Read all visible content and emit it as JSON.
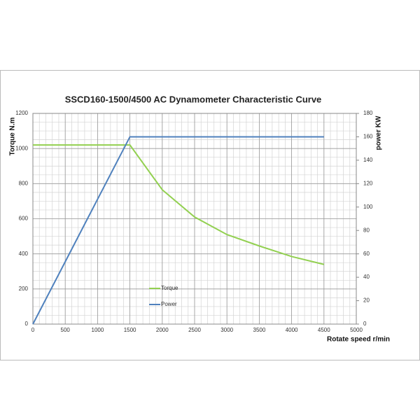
{
  "chart_data": {
    "type": "line",
    "title": "SSCD160-1500/4500  AC Dynamometer Characteristic Curve",
    "x_label": "Rotate speed r/min",
    "y_label": "Torque N.m",
    "y2_label": "power KW",
    "x": [
      0,
      500,
      1000,
      1500,
      2000,
      2500,
      3000,
      3500,
      4000,
      4500
    ],
    "series": [
      {
        "name": "Torque",
        "color": "#92d050",
        "values": [
          1020,
          1020,
          1020,
          1020,
          765,
          610,
          510,
          445,
          385,
          340
        ]
      },
      {
        "name": "Power",
        "color": "#4f81bd",
        "axis": "y2",
        "values": [
          0,
          53.3,
          106.7,
          160,
          160,
          160,
          160,
          160,
          160,
          160
        ]
      }
    ],
    "xlim": [
      0,
      5000
    ],
    "xticks": [
      0,
      500,
      1000,
      1500,
      2000,
      2500,
      3000,
      3500,
      4000,
      4500,
      5000
    ],
    "ylim": [
      0,
      1200
    ],
    "yticks": [
      0,
      200,
      400,
      600,
      800,
      1000,
      1200
    ],
    "y2lim": [
      0,
      180
    ],
    "y2ticks": [
      0,
      20,
      40,
      60,
      80,
      100,
      120,
      140,
      160,
      180
    ],
    "grid": true,
    "x_minor_step": 100,
    "y_minor_step": 50,
    "legend": "center"
  }
}
